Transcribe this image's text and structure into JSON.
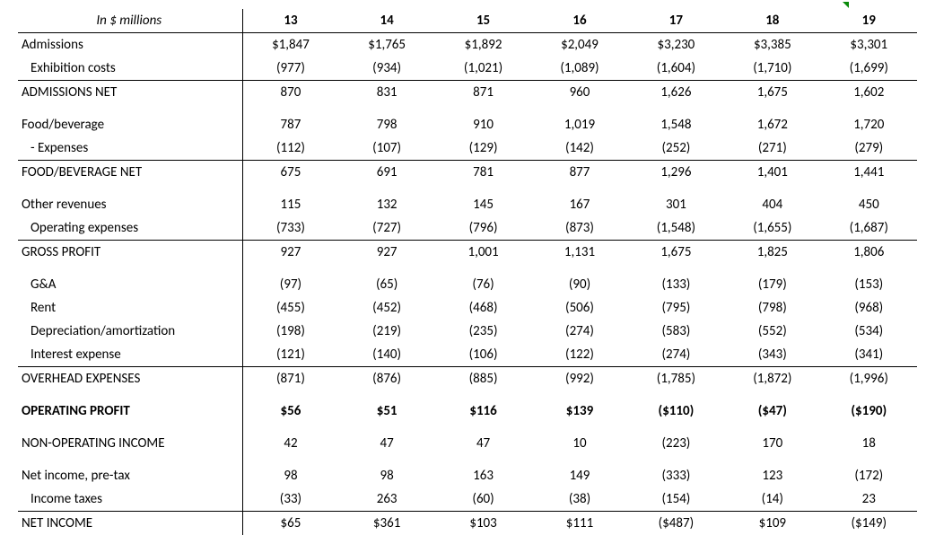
{
  "type": "table",
  "header": {
    "label": "In $ millions",
    "years": [
      "13",
      "14",
      "15",
      "16",
      "17",
      "18",
      "19"
    ]
  },
  "rows": [
    {
      "id": "admissions",
      "label": "Admissions",
      "cells": [
        "$1,847",
        "$1,765",
        "$1,892",
        "$2,049",
        "$3,230",
        "$3,385",
        "$3,301"
      ],
      "indent": false,
      "bt": false,
      "bb": false,
      "bold": false
    },
    {
      "id": "exhibition-costs",
      "label": "Exhibition costs",
      "cells": [
        "(977)",
        "(934)",
        "(1,021)",
        "(1,089)",
        "(1,604)",
        "(1,710)",
        "(1,699)"
      ],
      "indent": true,
      "bt": false,
      "bb": true,
      "bold": false
    },
    {
      "id": "admissions-net",
      "label": "ADMISSIONS NET",
      "cells": [
        "870",
        "831",
        "871",
        "960",
        "1,626",
        "1,675",
        "1,602"
      ],
      "indent": false,
      "bt": false,
      "bb": false,
      "bold": false
    },
    {
      "id": "spacer1",
      "spacer": true
    },
    {
      "id": "food-bev",
      "label": "Food/beverage",
      "cells": [
        "787",
        "798",
        "910",
        "1,019",
        "1,548",
        "1,672",
        "1,720"
      ],
      "indent": false,
      "bt": false,
      "bb": false,
      "bold": false
    },
    {
      "id": "food-bev-exp",
      "label": " - Expenses",
      "cells": [
        "(112)",
        "(107)",
        "(129)",
        "(142)",
        "(252)",
        "(271)",
        "(279)"
      ],
      "indent": true,
      "bt": false,
      "bb": true,
      "bold": false
    },
    {
      "id": "food-bev-net",
      "label": "FOOD/BEVERAGE NET",
      "cells": [
        "675",
        "691",
        "781",
        "877",
        "1,296",
        "1,401",
        "1,441"
      ],
      "indent": false,
      "bt": false,
      "bb": false,
      "bold": false
    },
    {
      "id": "spacer2",
      "spacer": true
    },
    {
      "id": "other-rev",
      "label": "Other revenues",
      "cells": [
        "115",
        "132",
        "145",
        "167",
        "301",
        "404",
        "450"
      ],
      "indent": false,
      "bt": false,
      "bb": false,
      "bold": false
    },
    {
      "id": "op-exp",
      "label": "Operating expenses",
      "cells": [
        "(733)",
        "(727)",
        "(796)",
        "(873)",
        "(1,548)",
        "(1,655)",
        "(1,687)"
      ],
      "indent": true,
      "bt": false,
      "bb": true,
      "bold": false
    },
    {
      "id": "gross-profit",
      "label": "GROSS PROFIT",
      "cells": [
        "927",
        "927",
        "1,001",
        "1,131",
        "1,675",
        "1,825",
        "1,806"
      ],
      "indent": false,
      "bt": false,
      "bb": false,
      "bold": false
    },
    {
      "id": "spacer3",
      "spacer": true
    },
    {
      "id": "ga",
      "label": "G&A",
      "cells": [
        "(97)",
        "(65)",
        "(76)",
        "(90)",
        "(133)",
        "(179)",
        "(153)"
      ],
      "indent": true,
      "bt": false,
      "bb": false,
      "bold": false
    },
    {
      "id": "rent",
      "label": "Rent",
      "cells": [
        "(455)",
        "(452)",
        "(468)",
        "(506)",
        "(795)",
        "(798)",
        "(968)"
      ],
      "indent": true,
      "bt": false,
      "bb": false,
      "bold": false
    },
    {
      "id": "da",
      "label": "Depreciation/amortization",
      "cells": [
        "(198)",
        "(219)",
        "(235)",
        "(274)",
        "(583)",
        "(552)",
        "(534)"
      ],
      "indent": true,
      "bt": false,
      "bb": false,
      "bold": false
    },
    {
      "id": "interest",
      "label": "Interest expense",
      "cells": [
        "(121)",
        "(140)",
        "(106)",
        "(122)",
        "(274)",
        "(343)",
        "(341)"
      ],
      "indent": true,
      "bt": false,
      "bb": true,
      "bold": false
    },
    {
      "id": "overhead",
      "label": "OVERHEAD EXPENSES",
      "cells": [
        "(871)",
        "(876)",
        "(885)",
        "(992)",
        "(1,785)",
        "(1,872)",
        "(1,996)"
      ],
      "indent": false,
      "bt": false,
      "bb": false,
      "bold": false
    },
    {
      "id": "spacer4",
      "spacer": true
    },
    {
      "id": "op-profit",
      "label": "OPERATING PROFIT",
      "cells": [
        "$56",
        "$51",
        "$116",
        "$139",
        "($110)",
        "($47)",
        "($190)"
      ],
      "indent": false,
      "bt": false,
      "bb": false,
      "bold": true
    },
    {
      "id": "spacer5",
      "spacer": true
    },
    {
      "id": "non-op-inc",
      "label": "NON-OPERATING INCOME",
      "cells": [
        "42",
        "47",
        "47",
        "10",
        "(223)",
        "170",
        "18"
      ],
      "indent": false,
      "bt": false,
      "bb": false,
      "bold": false
    },
    {
      "id": "spacer6",
      "spacer": true
    },
    {
      "id": "pre-tax",
      "label": "Net income, pre-tax",
      "cells": [
        "98",
        "98",
        "163",
        "149",
        "(333)",
        "123",
        "(172)"
      ],
      "indent": false,
      "bt": false,
      "bb": false,
      "bold": false
    },
    {
      "id": "taxes",
      "label": "Income taxes",
      "cells": [
        "(33)",
        "263",
        "(60)",
        "(38)",
        "(154)",
        "(14)",
        "23"
      ],
      "indent": true,
      "bt": false,
      "bb": true,
      "bold": false
    },
    {
      "id": "net-income",
      "label": "NET INCOME",
      "cells": [
        "$65",
        "$361",
        "$103",
        "$111",
        "($487)",
        "$109",
        "($149)"
      ],
      "indent": false,
      "bt": false,
      "bb": false,
      "bold": false
    }
  ],
  "style": {
    "font_family": "Calibri",
    "font_size_pt": 11,
    "text_color": "#000000",
    "background_color": "#ffffff",
    "border_color": "#000000",
    "flag_color": "#0a8a0a"
  }
}
